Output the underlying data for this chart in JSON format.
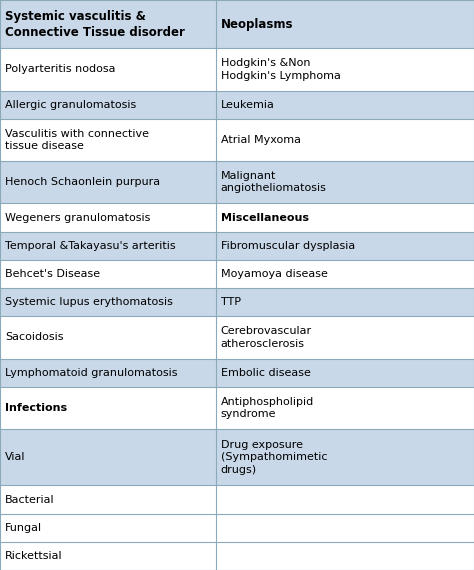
{
  "col1_header": "Systemic vasculitis &\nConnective Tissue disorder",
  "col2_header": "Neoplasms",
  "rows": [
    {
      "col1": "Polyarteritis nodosa",
      "col2": "Hodgkin's &Non\nHodgkin's Lymphoma",
      "shade": false
    },
    {
      "col1": "Allergic granulomatosis",
      "col2": "Leukemia",
      "shade": true
    },
    {
      "col1": "Vasculitis with connective\ntissue disease",
      "col2": "Atrial Myxoma",
      "shade": false
    },
    {
      "col1": "Henoch Schaonlein purpura",
      "col2": "Malignant\nangiotheliomatosis",
      "shade": true
    },
    {
      "col1": "Wegeners granulomatosis",
      "col2": "Miscellaneous",
      "shade": false,
      "col2_bold": true
    },
    {
      "col1": "Temporal &Takayasu's arteritis",
      "col2": "Fibromuscular dysplasia",
      "shade": true
    },
    {
      "col1": "Behcet's Disease",
      "col2": "Moyamoya disease",
      "shade": false
    },
    {
      "col1": "Systemic lupus erythomatosis",
      "col2": "TTP",
      "shade": true
    },
    {
      "col1": "Sacoidosis",
      "col2": "Cerebrovascular\natherosclerosis",
      "shade": false
    },
    {
      "col1": "Lymphomatoid granulomatosis",
      "col2": "Embolic disease",
      "shade": true
    },
    {
      "col1": "Infections",
      "col2": "Antiphospholipid\nsyndrome",
      "shade": false,
      "col1_bold": true
    },
    {
      "col1": "Vial",
      "col2": "Drug exposure\n(Sympathomimetic\ndrugs)",
      "shade": true
    },
    {
      "col1": "Bacterial",
      "col2": "",
      "shade": false
    },
    {
      "col1": "Fungal",
      "col2": "",
      "shade": false
    },
    {
      "col1": "Rickettsial",
      "col2": "",
      "shade": false
    }
  ],
  "shade_color": "#c8d8e8",
  "header_shade_color": "#c8d8e8",
  "bg_color": "#ffffff",
  "line_color": "#8aaabb",
  "text_color": "#000000",
  "header_fontsize": 8.5,
  "body_fontsize": 8.0,
  "col_split": 0.455
}
